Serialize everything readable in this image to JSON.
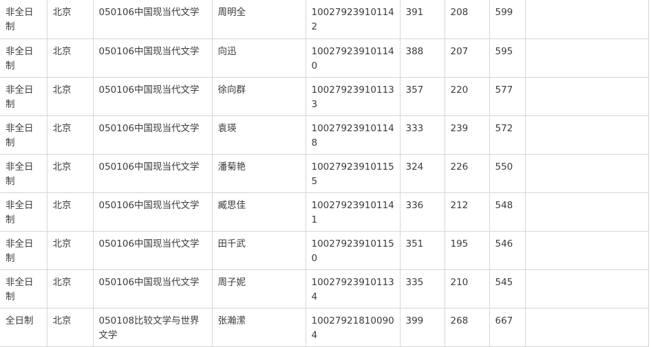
{
  "rows": [
    [
      "非全日制",
      "北京",
      "050106中国现当代文学",
      "周明全",
      "100279239101142",
      "391",
      "208",
      "599",
      ""
    ],
    [
      "非全日制",
      "北京",
      "050106中国现当代文学",
      "向迅",
      "100279239101140",
      "388",
      "207",
      "595",
      ""
    ],
    [
      "非全日制",
      "北京",
      "050106中国现当代文学",
      "徐向群",
      "100279239101133",
      "357",
      "220",
      "577",
      ""
    ],
    [
      "非全日制",
      "北京",
      "050106中国现当代文学",
      "袁瑛",
      "100279239101148",
      "333",
      "239",
      "572",
      ""
    ],
    [
      "非全日制",
      "北京",
      "050106中国现当代文学",
      "潘菊艳",
      "100279239101155",
      "324",
      "226",
      "550",
      ""
    ],
    [
      "非全日制",
      "北京",
      "050106中国现当代文学",
      "臧思佳",
      "100279239101141",
      "336",
      "212",
      "548",
      ""
    ],
    [
      "非全日制",
      "北京",
      "050106中国现当代文学",
      "田千武",
      "100279239101150",
      "351",
      "195",
      "546",
      ""
    ],
    [
      "非全日制",
      "北京",
      "050106中国现当代文学",
      "周子妮",
      "100279239101134",
      "335",
      "210",
      "545",
      ""
    ],
    [
      "全日制",
      "北京",
      "050108比较文学与世界文学",
      "张瀚潆",
      "100279218100904",
      "399",
      "268",
      "667",
      ""
    ]
  ]
}
